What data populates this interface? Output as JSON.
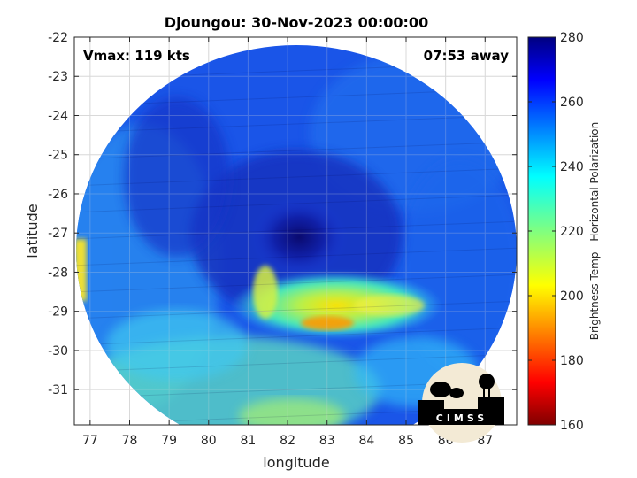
{
  "chart_data": {
    "type": "heatmap",
    "title": "Djoungou: 30-Nov-2023 00:00:00",
    "xlabel": "longitude",
    "ylabel": "latitude",
    "xlim": [
      76.6,
      87.8
    ],
    "ylim": [
      -31.9,
      -22
    ],
    "x_ticks": [
      "77",
      "78",
      "79",
      "80",
      "81",
      "82",
      "83",
      "84",
      "85",
      "86",
      "87"
    ],
    "y_ticks": [
      "-22",
      "-23",
      "-24",
      "-25",
      "-26",
      "-27",
      "-28",
      "-29",
      "-30",
      "-31"
    ],
    "grid": true,
    "annotations": {
      "left": "Vmax: 119 kts",
      "right": "07:53 away"
    },
    "storm_center": {
      "lon": 82.2,
      "lat": -27.0
    },
    "colorbar": {
      "label": "Brightness Temp - Horizontal Polarization",
      "range": [
        160,
        280
      ],
      "ticks": [
        "280",
        "260",
        "240",
        "220",
        "200",
        "180",
        "160"
      ],
      "colormap": "jet"
    },
    "logo_text": "CIMSS"
  }
}
